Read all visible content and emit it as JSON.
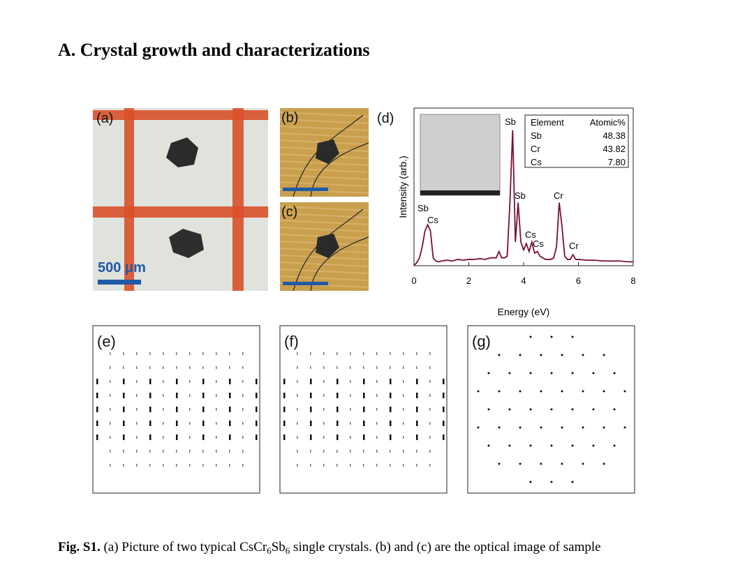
{
  "header": {
    "title": "A. Crystal growth and characterizations"
  },
  "figure": {
    "panels": {
      "a": {
        "label": "(a)",
        "scale_bar": "500 μm"
      },
      "b": {
        "label": "(b)"
      },
      "c": {
        "label": "(c)"
      },
      "d": {
        "label": "(d)",
        "type": "line",
        "xlabel": "Energy (eV)",
        "ylabel": "Intensity (arb.)",
        "xlim": [
          0,
          8
        ],
        "xticks": [
          0,
          2,
          4,
          6,
          8
        ],
        "ylim": [
          0,
          100
        ],
        "color": "#7a1030",
        "x": [
          0,
          0.1,
          0.2,
          0.3,
          0.4,
          0.5,
          0.6,
          0.7,
          0.8,
          0.9,
          1.0,
          1.2,
          1.4,
          1.6,
          1.8,
          2.0,
          2.2,
          2.4,
          2.6,
          2.8,
          3.0,
          3.1,
          3.2,
          3.3,
          3.4,
          3.5,
          3.6,
          3.7,
          3.8,
          3.9,
          4.0,
          4.1,
          4.2,
          4.3,
          4.4,
          4.5,
          4.6,
          4.7,
          4.8,
          4.9,
          5.0,
          5.1,
          5.2,
          5.3,
          5.4,
          5.5,
          5.6,
          5.7,
          5.8,
          5.9,
          6.0,
          6.3,
          6.6,
          6.9,
          7.2,
          7.5,
          7.8,
          8.0
        ],
        "values": [
          0,
          2,
          5,
          12,
          22,
          26,
          22,
          5,
          3,
          2.5,
          3,
          3.5,
          3,
          4,
          3.5,
          4,
          4,
          4.5,
          4,
          5,
          5,
          9,
          5,
          5,
          6,
          40,
          86,
          15,
          40,
          15,
          10,
          14,
          9,
          15,
          8,
          9,
          6,
          5,
          4,
          4,
          4,
          5,
          12,
          40,
          25,
          6,
          4,
          4,
          7,
          4,
          4,
          3.5,
          3.5,
          3,
          3,
          3,
          2.5,
          2.5
        ],
        "annotations": [
          "Sb",
          "Cs",
          "Sb",
          "Sb",
          "Cr",
          "Cs",
          "Cs",
          "Cr"
        ],
        "table": {
          "header": [
            "Element",
            "Atomic%"
          ],
          "rows": [
            [
              "Sb",
              "48.38"
            ],
            [
              "Cr",
              "43.82"
            ],
            [
              "Cs",
              "7.80"
            ]
          ]
        }
      },
      "e": {
        "label": "(e)"
      },
      "f": {
        "label": "(f)"
      },
      "g": {
        "label": "(g)"
      }
    }
  },
  "caption": {
    "label": "Fig. S1.",
    "parts": [
      " (a) Picture of two typical CsCr",
      "6",
      "Sb",
      "6",
      " single crystals. (b) and (c) are the optical image of sample"
    ]
  }
}
